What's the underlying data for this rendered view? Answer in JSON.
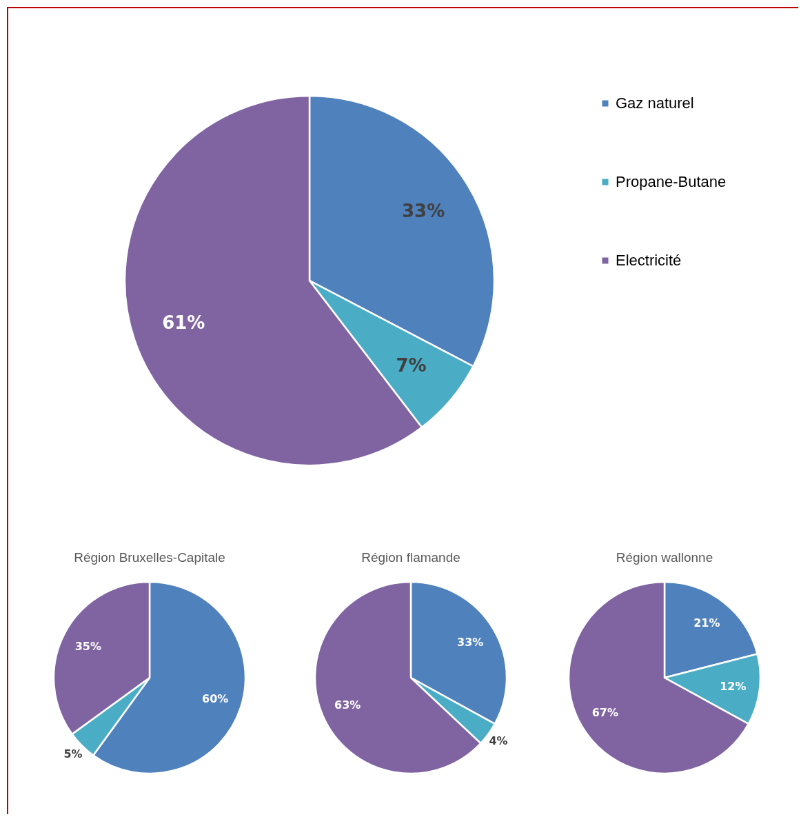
{
  "chart_data": [
    {
      "type": "pie",
      "categories": [
        "Gaz naturel",
        "Propane-Butane",
        "Electricité"
      ],
      "values": [
        33,
        7,
        61
      ],
      "value_labels": [
        "33%",
        "7%",
        "61%"
      ],
      "colors": [
        "#4f81bd",
        "#4bacc6",
        "#8064a2"
      ],
      "legend": "right"
    },
    {
      "type": "pie",
      "title": "Région Bruxelles-Capitale",
      "categories": [
        null,
        null,
        null
      ],
      "values": [
        60,
        5,
        35
      ],
      "value_labels": [
        "60%",
        "5%",
        "35%"
      ],
      "colors": [
        "#4f81bd",
        "#4bacc6",
        "#8064a2"
      ]
    },
    {
      "type": "pie",
      "title": "Région flamande",
      "categories": [
        null,
        null,
        null
      ],
      "values": [
        33,
        4,
        63
      ],
      "value_labels": [
        "33%",
        "4%",
        "63%"
      ],
      "colors": [
        "#4f81bd",
        "#4bacc6",
        "#8064a2"
      ]
    },
    {
      "type": "pie",
      "title": "Région wallonne",
      "categories": [
        null,
        null,
        null
      ],
      "values": [
        21,
        12,
        67
      ],
      "value_labels": [
        "21%",
        "12%",
        "67%"
      ],
      "colors": [
        "#4f81bd",
        "#4bacc6",
        "#8064a2"
      ]
    }
  ]
}
